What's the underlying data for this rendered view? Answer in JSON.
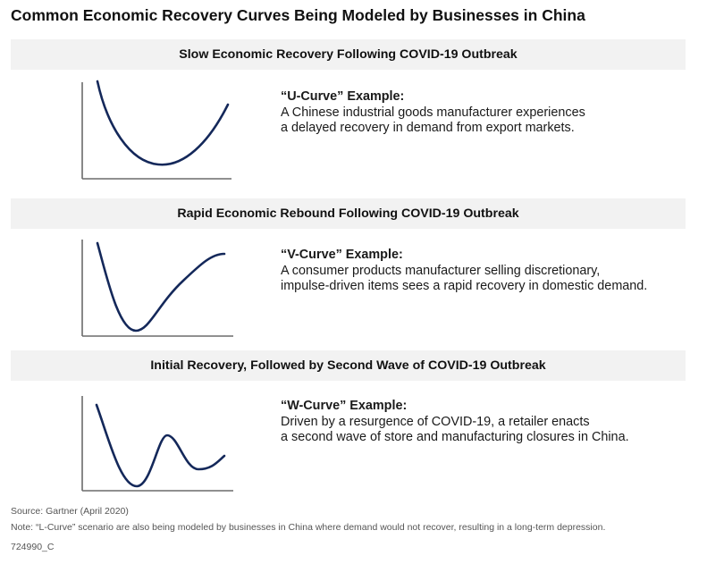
{
  "title": "Common Economic Recovery Curves Being Modeled by Businesses in China",
  "sections": [
    {
      "header": "Slow Economic Recovery Following COVID-19 Outbreak",
      "example_title": "“U-Curve” Example:",
      "line1": "A Chinese industrial goods manufacturer experiences",
      "line2": "a delayed recovery in demand from export markets.",
      "curve": "U-Curve"
    },
    {
      "header": "Rapid Economic Rebound Following  COVID-19 Outbreak",
      "example_title": "“V-Curve” Example:",
      "line1": "A consumer products manufacturer selling discretionary,",
      "line2": "impulse-driven items sees a rapid recovery in domestic demand.",
      "curve": "V-Curve"
    },
    {
      "header": "Initial Recovery, Followed by Second Wave of COVID-19 Outbreak",
      "example_title": "“W-Curve” Example:",
      "line1": "Driven by a resurgence of COVID-19, a retailer enacts",
      "line2": "a second wave of store and manufacturing closures in China.",
      "curve": "W-Curve"
    }
  ],
  "footer": {
    "source": "Source: Gartner (April 2020)",
    "note": "Note: “L-Curve” scenario are also being modeled by businesses in China where demand would not recover, resulting in a long-term depression.",
    "code": "724990_C"
  },
  "colors": {
    "curve": "#14285a",
    "axis": "#6b6b6b",
    "band": "#f2f2f2"
  }
}
